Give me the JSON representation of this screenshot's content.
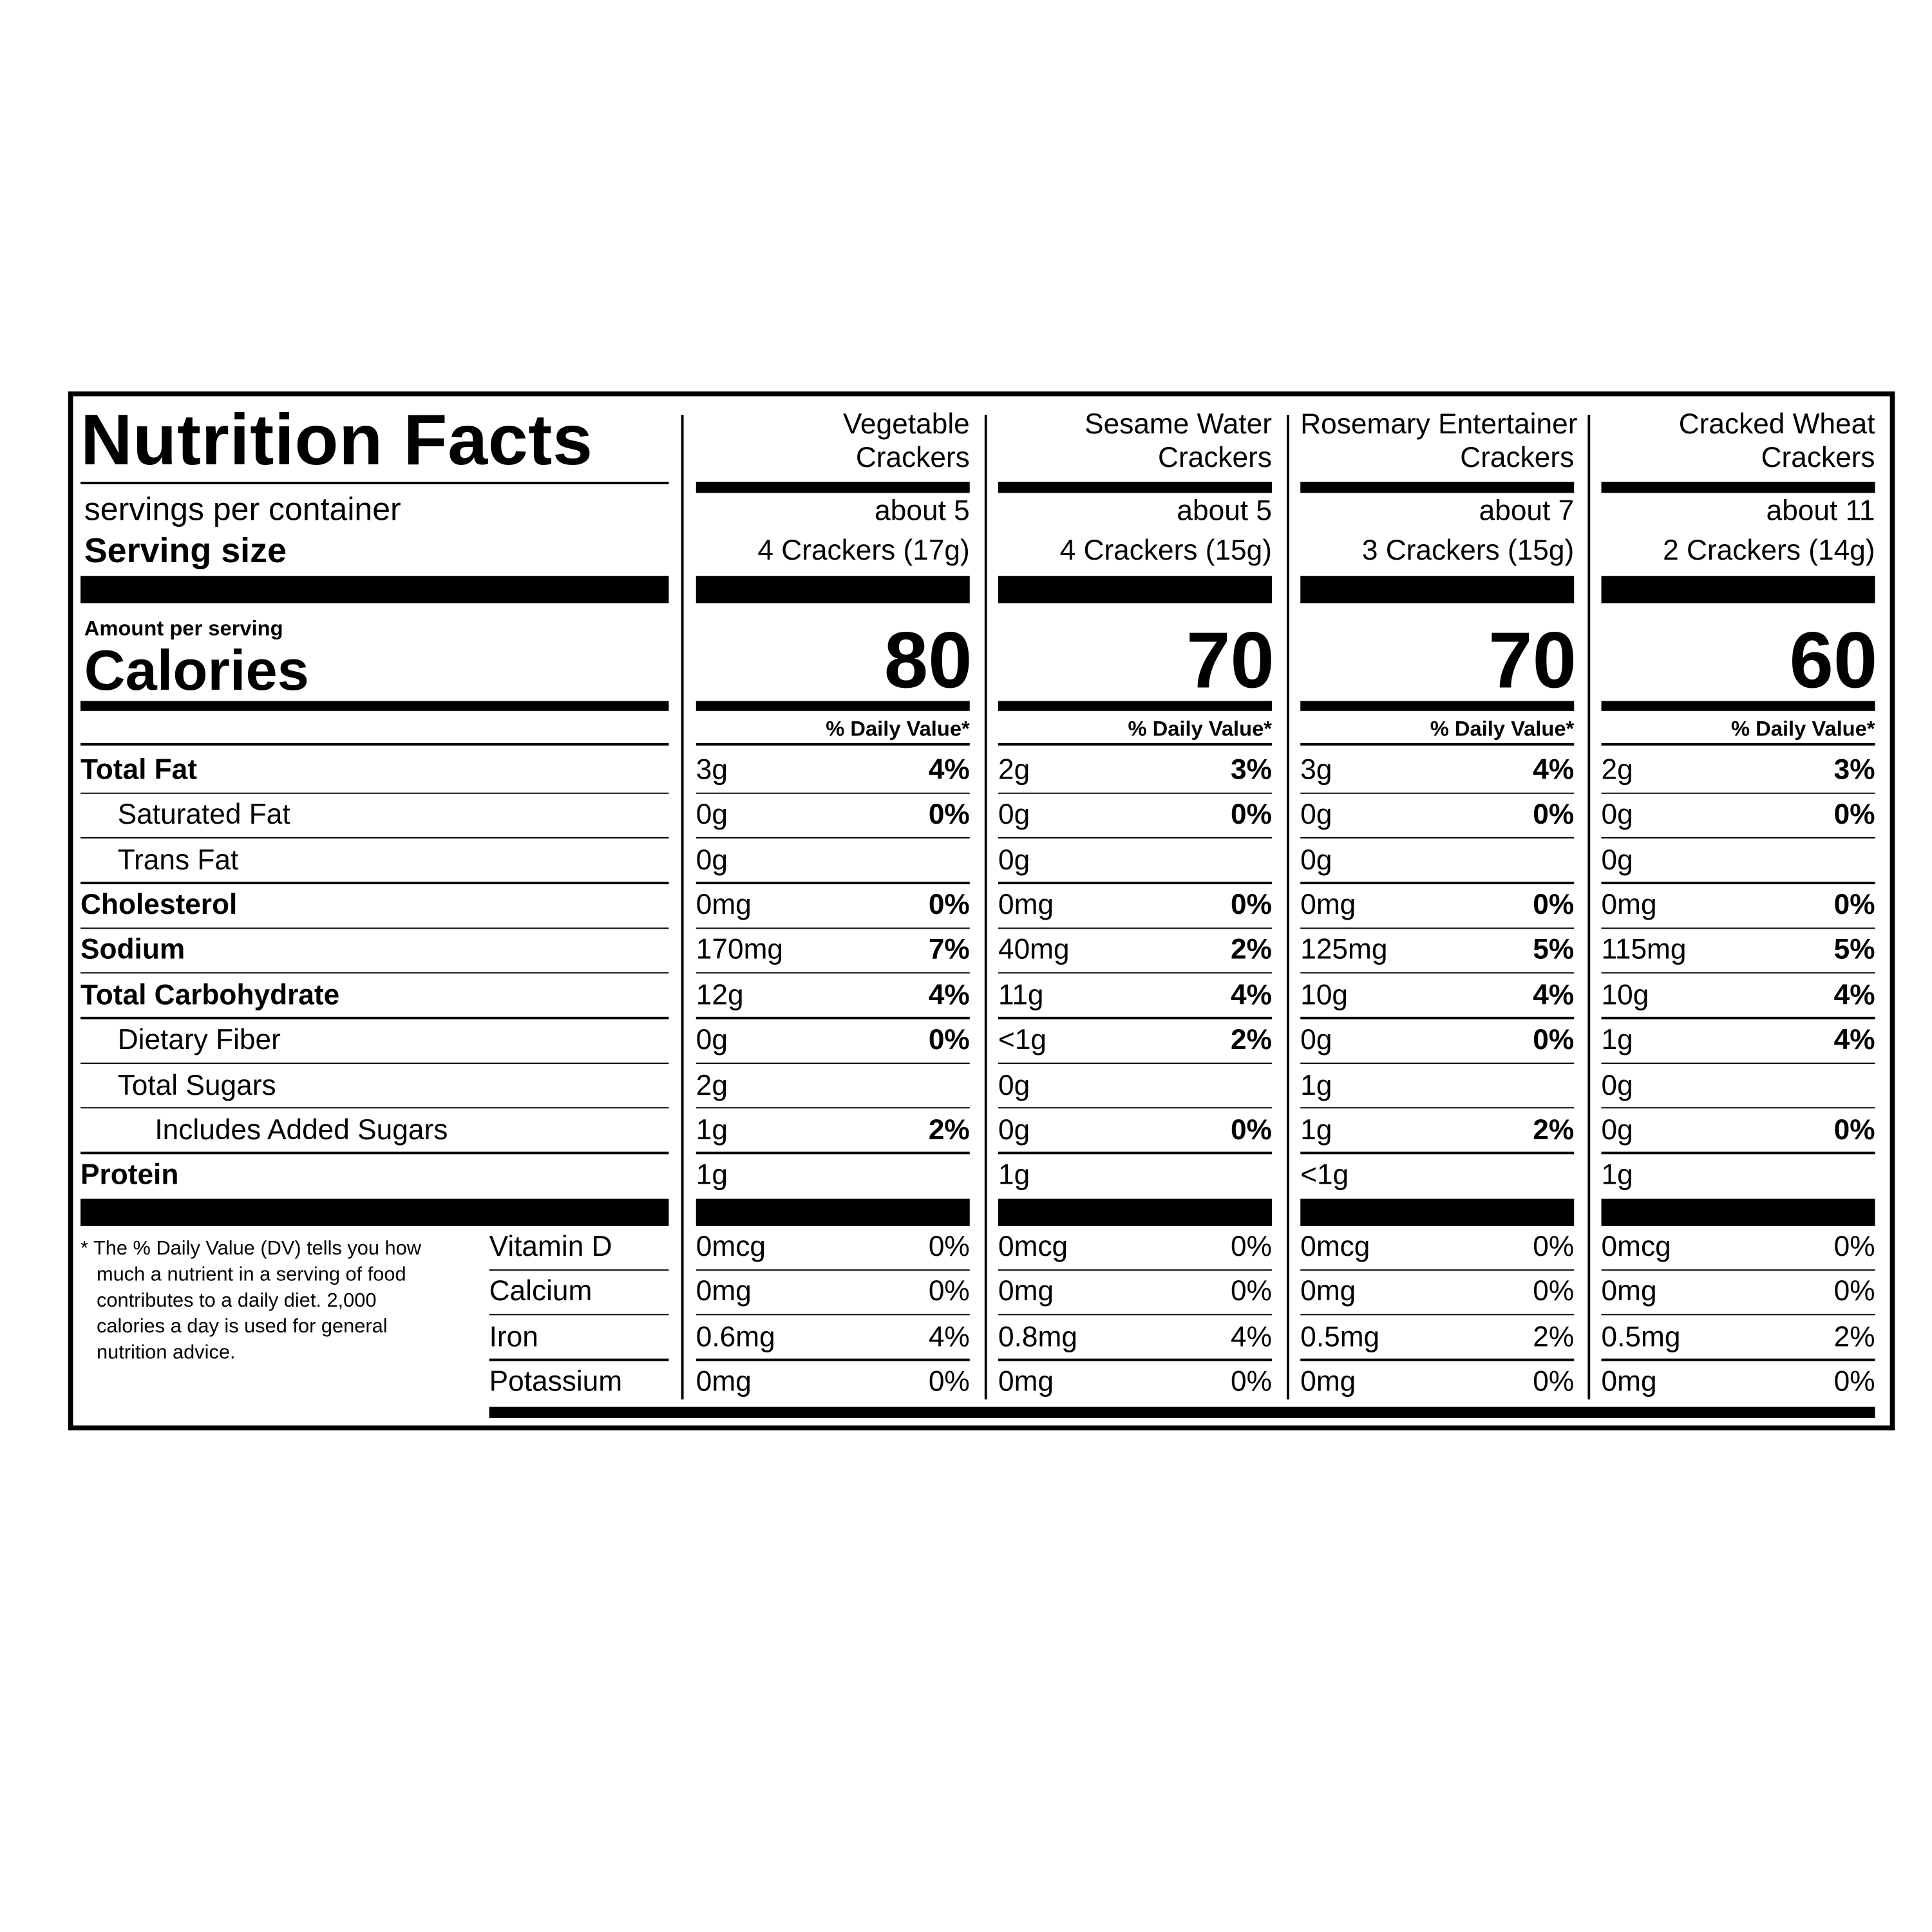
{
  "header": {
    "title": "Nutrition Facts",
    "servings_label": "servings per container",
    "serving_size_label": "Serving size",
    "amount_label": "Amount per serving",
    "calories_label": "Calories",
    "dv_label": "% Daily Value*"
  },
  "nutrient_labels": [
    "Total Fat",
    "Saturated Fat",
    "Trans Fat",
    "Cholesterol",
    "Sodium",
    "Total Carbohydrate",
    "Dietary Fiber",
    "Total Sugars",
    "Includes Added Sugars",
    "Protein"
  ],
  "vitamin_labels": [
    "Vitamin D",
    "Calcium",
    "Iron",
    "Potassium"
  ],
  "footnote": "* The % Daily Value (DV) tells you how much a nutrient in a serving of food contributes to a daily diet. 2,000 calories a day is used for general nutrition advice.",
  "products": [
    {
      "name": [
        "Vegetable",
        "Crackers"
      ],
      "servings": "about 5",
      "serving_size": "4 Crackers (17g)",
      "calories": 80,
      "nutrients": [
        {
          "amount": "3g",
          "dv": "4%"
        },
        {
          "amount": "0g",
          "dv": "0%"
        },
        {
          "amount": "0g",
          "dv": null
        },
        {
          "amount": "0mg",
          "dv": "0%"
        },
        {
          "amount": "170mg",
          "dv": "7%"
        },
        {
          "amount": "12g",
          "dv": "4%"
        },
        {
          "amount": "0g",
          "dv": "0%"
        },
        {
          "amount": "2g",
          "dv": null
        },
        {
          "amount": "1g",
          "dv": "2%"
        },
        {
          "amount": "1g",
          "dv": null
        }
      ],
      "vitamins": [
        {
          "amount": "0mcg",
          "dv": "0%"
        },
        {
          "amount": "0mg",
          "dv": "0%"
        },
        {
          "amount": "0.6mg",
          "dv": "4%"
        },
        {
          "amount": "0mg",
          "dv": "0%"
        }
      ]
    },
    {
      "name": [
        "Sesame Water",
        "Crackers"
      ],
      "servings": "about 5",
      "serving_size": "4 Crackers (15g)",
      "calories": 70,
      "nutrients": [
        {
          "amount": "2g",
          "dv": "3%"
        },
        {
          "amount": "0g",
          "dv": "0%"
        },
        {
          "amount": "0g",
          "dv": null
        },
        {
          "amount": "0mg",
          "dv": "0%"
        },
        {
          "amount": "40mg",
          "dv": "2%"
        },
        {
          "amount": "11g",
          "dv": "4%"
        },
        {
          "amount": "<1g",
          "dv": "2%"
        },
        {
          "amount": "0g",
          "dv": null
        },
        {
          "amount": "0g",
          "dv": "0%"
        },
        {
          "amount": "1g",
          "dv": null
        }
      ],
      "vitamins": [
        {
          "amount": "0mcg",
          "dv": "0%"
        },
        {
          "amount": "0mg",
          "dv": "0%"
        },
        {
          "amount": "0.8mg",
          "dv": "4%"
        },
        {
          "amount": "0mg",
          "dv": "0%"
        }
      ]
    },
    {
      "name": [
        "Rosemary Entertainer",
        "Crackers"
      ],
      "servings": "about 7",
      "serving_size": "3 Crackers (15g)",
      "calories": 70,
      "nutrients": [
        {
          "amount": "3g",
          "dv": "4%"
        },
        {
          "amount": "0g",
          "dv": "0%"
        },
        {
          "amount": "0g",
          "dv": null
        },
        {
          "amount": "0mg",
          "dv": "0%"
        },
        {
          "amount": "125mg",
          "dv": "5%"
        },
        {
          "amount": "10g",
          "dv": "4%"
        },
        {
          "amount": "0g",
          "dv": "0%"
        },
        {
          "amount": "1g",
          "dv": null
        },
        {
          "amount": "1g",
          "dv": "2%"
        },
        {
          "amount": "<1g",
          "dv": null
        }
      ],
      "vitamins": [
        {
          "amount": "0mcg",
          "dv": "0%"
        },
        {
          "amount": "0mg",
          "dv": "0%"
        },
        {
          "amount": "0.5mg",
          "dv": "2%"
        },
        {
          "amount": "0mg",
          "dv": "0%"
        }
      ]
    },
    {
      "name": [
        "Cracked Wheat",
        "Crackers"
      ],
      "servings": "about 11",
      "serving_size": "2 Crackers (14g)",
      "calories": 60,
      "nutrients": [
        {
          "amount": "2g",
          "dv": "3%"
        },
        {
          "amount": "0g",
          "dv": "0%"
        },
        {
          "amount": "0g",
          "dv": null
        },
        {
          "amount": "0mg",
          "dv": "0%"
        },
        {
          "amount": "115mg",
          "dv": "5%"
        },
        {
          "amount": "10g",
          "dv": "4%"
        },
        {
          "amount": "1g",
          "dv": "4%"
        },
        {
          "amount": "0g",
          "dv": null
        },
        {
          "amount": "0g",
          "dv": "0%"
        },
        {
          "amount": "1g",
          "dv": null
        }
      ],
      "vitamins": [
        {
          "amount": "0mcg",
          "dv": "0%"
        },
        {
          "amount": "0mg",
          "dv": "0%"
        },
        {
          "amount": "0.5mg",
          "dv": "2%"
        },
        {
          "amount": "0mg",
          "dv": "0%"
        }
      ]
    }
  ]
}
